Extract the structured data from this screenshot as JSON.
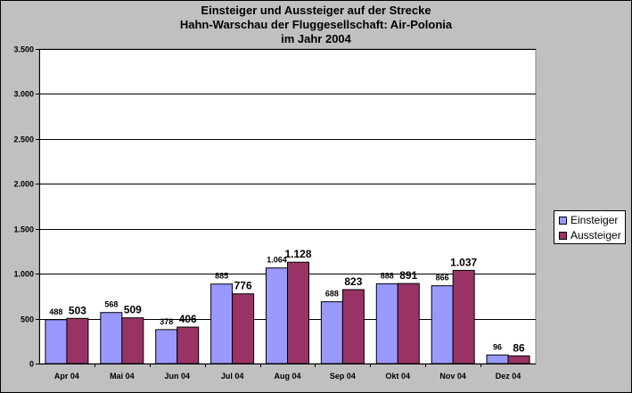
{
  "chart_data": {
    "type": "bar",
    "title_lines": [
      "Einsteiger und Aussteiger auf der Strecke",
      "Hahn-Warschau der Fluggesellschaft: Air-Polonia",
      "im Jahr 2004"
    ],
    "categories": [
      "Apr 04",
      "Mai 04",
      "Jun 04",
      "Jul 04",
      "Aug 04",
      "Sep 04",
      "Okt 04",
      "Nov 04",
      "Dez 04"
    ],
    "series": [
      {
        "name": "Einsteiger",
        "color": "#9999ff",
        "values": [
          488,
          568,
          378,
          885,
          1064,
          688,
          888,
          866,
          96
        ],
        "labels": [
          "488",
          "568",
          "378",
          "885",
          "1.064",
          "688",
          "888",
          "866",
          "96"
        ]
      },
      {
        "name": "Aussteiger",
        "color": "#993366",
        "values": [
          503,
          509,
          406,
          776,
          1128,
          823,
          891,
          1037,
          86
        ],
        "labels": [
          "503",
          "509",
          "406",
          "776",
          "1.128",
          "823",
          "891",
          "1.037",
          "86"
        ]
      }
    ],
    "ylim": [
      0,
      3500
    ],
    "yticks": [
      0,
      500,
      1000,
      1500,
      2000,
      2500,
      3000,
      3500
    ],
    "ytick_labels": [
      "0",
      "500",
      "1.000",
      "1.500",
      "2.000",
      "2.500",
      "3.000",
      "3.500"
    ],
    "grid": true,
    "legend_position": "right",
    "xlabel": "",
    "ylabel": ""
  }
}
